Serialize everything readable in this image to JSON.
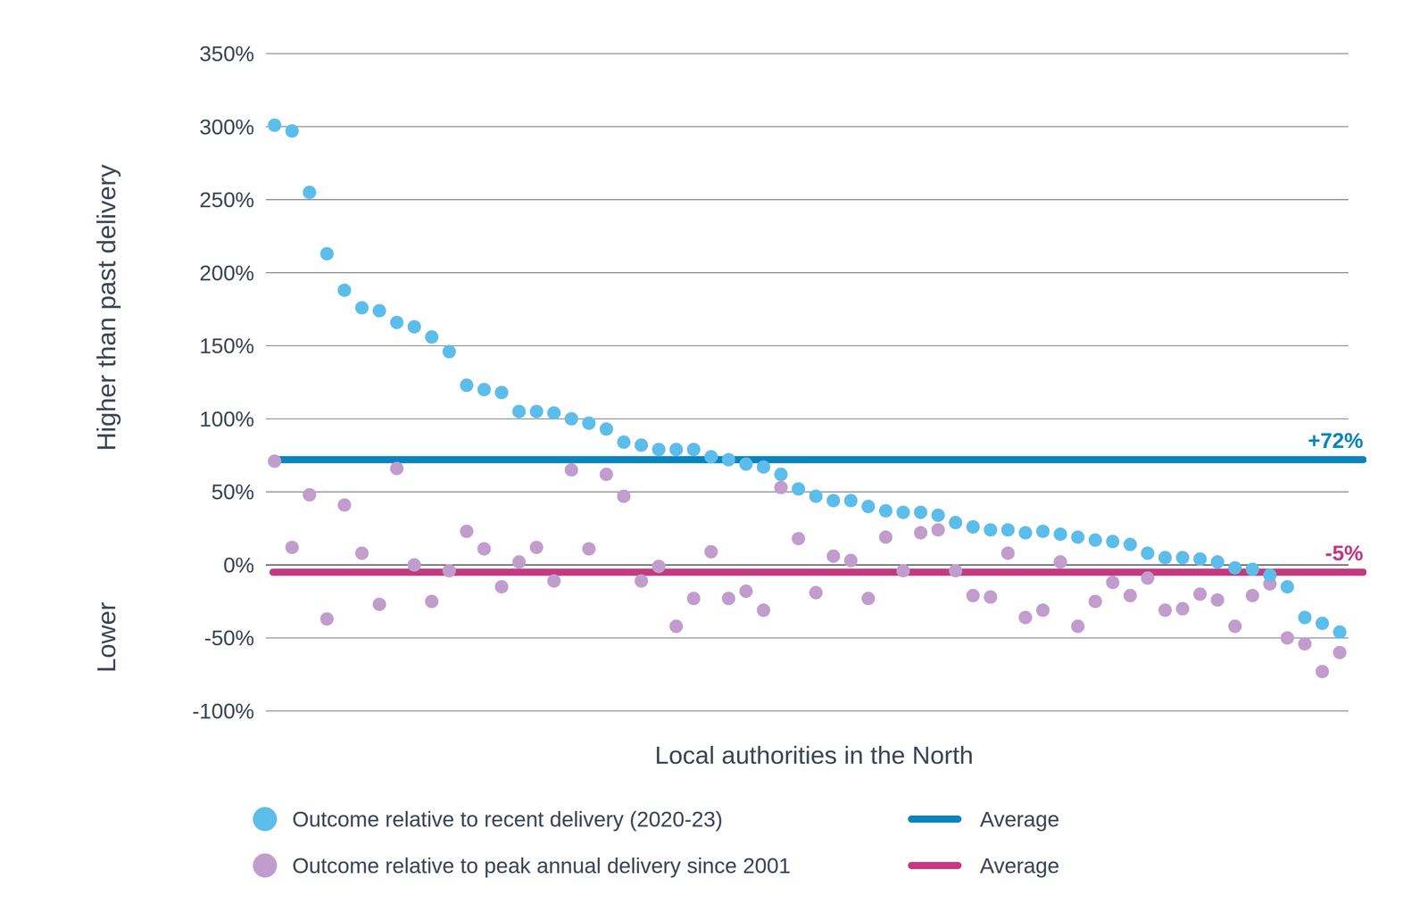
{
  "chart_data": {
    "type": "scatter",
    "x_label": "Local authorities in the North",
    "y_label": "Higher than past delivery",
    "y_label_lower": "Lower",
    "categories": [
      null,
      null,
      null,
      null,
      null,
      null,
      null,
      null,
      null,
      null,
      null,
      null,
      null,
      null,
      null,
      null,
      null,
      null,
      null,
      null,
      null,
      null,
      null,
      null,
      null,
      null,
      null,
      null,
      null,
      null,
      null,
      null,
      null,
      null,
      null,
      null,
      null,
      null,
      null,
      null,
      null,
      null,
      null,
      null,
      null,
      null,
      null,
      null,
      null,
      null,
      null,
      null,
      null,
      null,
      null,
      null,
      null,
      null,
      null,
      null,
      null,
      null
    ],
    "ylim": [
      -100,
      350
    ],
    "yticks": [
      {
        "value": -100,
        "label": "-100%"
      },
      {
        "value": -50,
        "label": "-50%"
      },
      {
        "value": 0,
        "label": "0%"
      },
      {
        "value": 50,
        "label": "50%"
      },
      {
        "value": 100,
        "label": "100%"
      },
      {
        "value": 150,
        "label": "150%"
      },
      {
        "value": 200,
        "label": "200%"
      },
      {
        "value": 250,
        "label": "250%"
      },
      {
        "value": 300,
        "label": "300%"
      },
      {
        "value": 350,
        "label": "350%"
      }
    ],
    "grid": true,
    "legend": "bottom",
    "tick_labels": "y",
    "series": [
      {
        "name": "Outcome relative to recent delivery (2020-23)",
        "color": "#5dbdea",
        "marker": "circle",
        "average": 72,
        "average_label": "+72%",
        "average_name": "Average",
        "average_color": "#0a84bf",
        "values": [
          301,
          297,
          255,
          213,
          188,
          176,
          174,
          166,
          163,
          156,
          146,
          123,
          120,
          118,
          105,
          105,
          104,
          100,
          97,
          93,
          84,
          82,
          79,
          79,
          79,
          74,
          72,
          69,
          67,
          62,
          52,
          47,
          44,
          44,
          40,
          37,
          36,
          36,
          34,
          29,
          26,
          24,
          24,
          22,
          23,
          21,
          19,
          17,
          16,
          14,
          8,
          5,
          5,
          4,
          2,
          -2,
          -3,
          -7,
          -15,
          -36,
          -40,
          -46
        ]
      },
      {
        "name": "Outcome relative to peak annual delivery since 2001",
        "color": "#c19dcd",
        "marker": "circle",
        "average": -5,
        "average_label": "-5%",
        "average_name": "Average",
        "average_color": "#c43a80",
        "values": [
          71,
          12,
          48,
          -37,
          41,
          8,
          -27,
          66,
          0,
          -25,
          -4,
          23,
          11,
          -15,
          2,
          12,
          -11,
          65,
          11,
          62,
          47,
          -11,
          -1,
          -42,
          -23,
          9,
          -23,
          -18,
          -31,
          53,
          18,
          -19,
          6,
          3,
          -23,
          19,
          -4,
          22,
          24,
          -4,
          -21,
          -22,
          8,
          -36,
          -31,
          2,
          -42,
          -25,
          -12,
          -21,
          -9,
          -31,
          -30,
          -20,
          -24,
          -42,
          -21,
          -13,
          -50,
          -54,
          -73,
          -60
        ]
      }
    ]
  }
}
